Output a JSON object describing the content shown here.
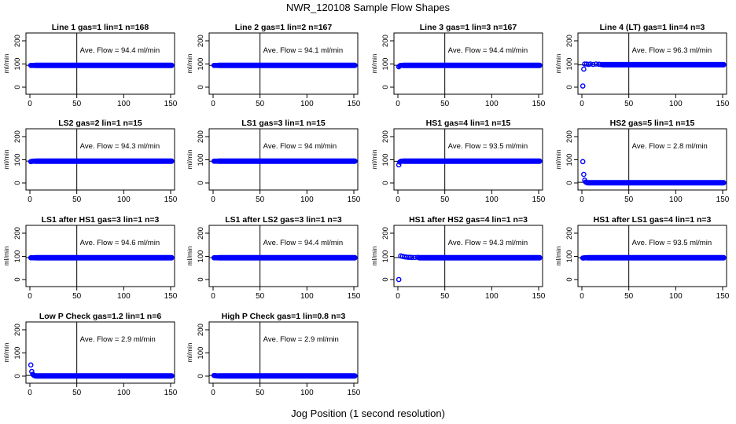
{
  "figure": {
    "title": "NWR_120108  Sample Flow Shapes",
    "xlabel": "Jog Position (1 second resolution)",
    "colors": {
      "points": "#0000ff",
      "axes": "#000000"
    }
  },
  "chart_data": [
    {
      "type": "scatter",
      "title": "Line 1 gas=1 lin=1 n=168",
      "ylabel": "ml/min",
      "annotation": "Ave. Flow = 94.4  ml/min",
      "xlim": [
        0,
        150
      ],
      "ylim": [
        0,
        200
      ],
      "xticks": [
        0,
        50,
        100,
        150
      ],
      "yticks": [
        0,
        100,
        200
      ],
      "vline": 50,
      "hline": 94.4,
      "points": [
        [
          1,
          94
        ],
        [
          2,
          94
        ],
        [
          3,
          94
        ],
        [
          4,
          94
        ],
        [
          5,
          94
        ]
      ],
      "plateau": {
        "x_from": 6,
        "x_to": 151,
        "y": 94
      }
    },
    {
      "type": "scatter",
      "title": "Line 2 gas=1 lin=2 n=167",
      "ylabel": "ml/min",
      "annotation": "Ave. Flow = 94.1  ml/min",
      "xlim": [
        0,
        150
      ],
      "ylim": [
        0,
        200
      ],
      "xticks": [
        0,
        50,
        100,
        150
      ],
      "yticks": [
        0,
        100,
        200
      ],
      "vline": 50,
      "hline": 94.1,
      "points": [
        [
          1,
          94
        ],
        [
          2,
          94
        ],
        [
          3,
          94
        ],
        [
          4,
          94
        ],
        [
          5,
          94
        ]
      ],
      "plateau": {
        "x_from": 6,
        "x_to": 151,
        "y": 94
      }
    },
    {
      "type": "scatter",
      "title": "Line 3 gas=1 lin=3 n=167",
      "ylabel": "ml/min",
      "annotation": "Ave. Flow = 94.4  ml/min",
      "xlim": [
        0,
        150
      ],
      "ylim": [
        0,
        200
      ],
      "xticks": [
        0,
        50,
        100,
        150
      ],
      "yticks": [
        0,
        100,
        200
      ],
      "vline": 50,
      "hline": 94.4,
      "points": [
        [
          1,
          88
        ],
        [
          2,
          92
        ],
        [
          3,
          94
        ],
        [
          4,
          94
        ],
        [
          5,
          94
        ]
      ],
      "plateau": {
        "x_from": 6,
        "x_to": 151,
        "y": 94
      }
    },
    {
      "type": "scatter",
      "title": "Line 4 (LT) gas=1 lin=4 n=3",
      "ylabel": "ml/min",
      "annotation": "Ave. Flow = 96.3  ml/min",
      "xlim": [
        0,
        150
      ],
      "ylim": [
        0,
        200
      ],
      "xticks": [
        0,
        50,
        100,
        150
      ],
      "yticks": [
        0,
        100,
        200
      ],
      "vline": 50,
      "hline": 96.3,
      "points": [
        [
          1,
          5
        ],
        [
          2,
          78
        ],
        [
          3,
          100
        ],
        [
          5,
          100
        ],
        [
          7,
          98
        ],
        [
          9,
          100
        ],
        [
          12,
          98
        ],
        [
          15,
          100
        ],
        [
          18,
          99
        ],
        [
          20,
          98
        ]
      ],
      "plateau": {
        "x_from": 22,
        "x_to": 151,
        "y": 97
      }
    },
    {
      "type": "scatter",
      "title": "LS2 gas=2 lin=1 n=15",
      "ylabel": "ml/min",
      "annotation": "Ave. Flow = 94.3  ml/min",
      "xlim": [
        0,
        150
      ],
      "ylim": [
        0,
        200
      ],
      "xticks": [
        0,
        50,
        100,
        150
      ],
      "yticks": [
        0,
        100,
        200
      ],
      "vline": 50,
      "hline": 94.3,
      "points": [
        [
          1,
          92
        ],
        [
          2,
          93
        ],
        [
          3,
          94
        ],
        [
          4,
          94
        ],
        [
          5,
          94
        ]
      ],
      "plateau": {
        "x_from": 6,
        "x_to": 151,
        "y": 94
      }
    },
    {
      "type": "scatter",
      "title": "LS1 gas=3 lin=1 n=15",
      "ylabel": "ml/min",
      "annotation": "Ave. Flow = 94  ml/min",
      "xlim": [
        0,
        150
      ],
      "ylim": [
        0,
        200
      ],
      "xticks": [
        0,
        50,
        100,
        150
      ],
      "yticks": [
        0,
        100,
        200
      ],
      "vline": 50,
      "hline": 94,
      "points": [
        [
          1,
          94
        ],
        [
          2,
          94
        ],
        [
          3,
          94
        ],
        [
          4,
          94
        ],
        [
          5,
          94
        ]
      ],
      "plateau": {
        "x_from": 6,
        "x_to": 151,
        "y": 94
      }
    },
    {
      "type": "scatter",
      "title": "HS1 gas=4 lin=1 n=15",
      "ylabel": "ml/min",
      "annotation": "Ave. Flow = 93.5  ml/min",
      "xlim": [
        0,
        150
      ],
      "ylim": [
        0,
        200
      ],
      "xticks": [
        0,
        50,
        100,
        150
      ],
      "yticks": [
        0,
        100,
        200
      ],
      "vline": 50,
      "hline": 93.5,
      "points": [
        [
          1,
          78
        ],
        [
          2,
          90
        ],
        [
          3,
          93
        ],
        [
          4,
          94
        ],
        [
          5,
          94
        ]
      ],
      "plateau": {
        "x_from": 6,
        "x_to": 151,
        "y": 94
      }
    },
    {
      "type": "scatter",
      "title": "HS2 gas=5 lin=1 n=15",
      "ylabel": "ml/min",
      "annotation": "Ave. Flow = 2.8  ml/min",
      "xlim": [
        0,
        150
      ],
      "ylim": [
        0,
        200
      ],
      "xticks": [
        0,
        50,
        100,
        150
      ],
      "yticks": [
        0,
        100,
        200
      ],
      "vline": 50,
      "hline": 2.8,
      "points": [
        [
          1,
          92
        ],
        [
          2,
          37
        ],
        [
          3,
          12
        ],
        [
          4,
          4
        ],
        [
          5,
          2
        ]
      ],
      "plateau": {
        "x_from": 6,
        "x_to": 151,
        "y": 1
      }
    },
    {
      "type": "scatter",
      "title": "LS1 after HS1 gas=3 lin=1 n=3",
      "ylabel": "ml/min",
      "annotation": "Ave. Flow = 94.6  ml/min",
      "xlim": [
        0,
        150
      ],
      "ylim": [
        0,
        200
      ],
      "xticks": [
        0,
        50,
        100,
        150
      ],
      "yticks": [
        0,
        100,
        200
      ],
      "vline": 50,
      "hline": 94.6,
      "points": [
        [
          1,
          94
        ],
        [
          2,
          94
        ],
        [
          3,
          94
        ],
        [
          4,
          94
        ],
        [
          5,
          94
        ]
      ],
      "plateau": {
        "x_from": 6,
        "x_to": 151,
        "y": 94
      }
    },
    {
      "type": "scatter",
      "title": "LS1 after LS2 gas=3 lin=1 n=3",
      "ylabel": "ml/min",
      "annotation": "Ave. Flow = 94.4  ml/min",
      "xlim": [
        0,
        150
      ],
      "ylim": [
        0,
        200
      ],
      "xticks": [
        0,
        50,
        100,
        150
      ],
      "yticks": [
        0,
        100,
        200
      ],
      "vline": 50,
      "hline": 94.4,
      "points": [
        [
          1,
          94
        ],
        [
          2,
          94
        ],
        [
          3,
          94
        ],
        [
          4,
          94
        ],
        [
          5,
          94
        ]
      ],
      "plateau": {
        "x_from": 6,
        "x_to": 151,
        "y": 94
      }
    },
    {
      "type": "scatter",
      "title": "HS1 after HS2 gas=4 lin=1 n=3",
      "ylabel": "ml/min",
      "annotation": "Ave. Flow = 94.3  ml/min",
      "xlim": [
        0,
        150
      ],
      "ylim": [
        0,
        200
      ],
      "xticks": [
        0,
        50,
        100,
        150
      ],
      "yticks": [
        0,
        100,
        200
      ],
      "vline": 50,
      "hline": 94.3,
      "points": [
        [
          1,
          0
        ],
        [
          3,
          102
        ],
        [
          5,
          100
        ],
        [
          7,
          98
        ],
        [
          9,
          97
        ],
        [
          11,
          96
        ],
        [
          13,
          96
        ],
        [
          15,
          95
        ],
        [
          18,
          95
        ],
        [
          21,
          96
        ]
      ],
      "plateau": {
        "x_from": 23,
        "x_to": 151,
        "y": 94
      }
    },
    {
      "type": "scatter",
      "title": "HS1 after LS1 gas=4 lin=1 n=3",
      "ylabel": "ml/min",
      "annotation": "Ave. Flow = 93.5  ml/min",
      "xlim": [
        0,
        150
      ],
      "ylim": [
        0,
        200
      ],
      "xticks": [
        0,
        50,
        100,
        150
      ],
      "yticks": [
        0,
        100,
        200
      ],
      "vline": 50,
      "hline": 93.5,
      "points": [
        [
          1,
          93
        ],
        [
          2,
          93
        ],
        [
          3,
          94
        ],
        [
          4,
          94
        ],
        [
          5,
          94
        ]
      ],
      "plateau": {
        "x_from": 6,
        "x_to": 151,
        "y": 94
      }
    },
    {
      "type": "scatter",
      "title": "Low P Check gas=1.2 lin=1 n=6",
      "ylabel": "ml/min",
      "annotation": "Ave. Flow = 2.9  ml/min",
      "xlim": [
        0,
        150
      ],
      "ylim": [
        0,
        200
      ],
      "xticks": [
        0,
        50,
        100,
        150
      ],
      "yticks": [
        0,
        100,
        200
      ],
      "vline": 50,
      "hline": 2.9,
      "points": [
        [
          1,
          48
        ],
        [
          2,
          20
        ],
        [
          3,
          8
        ],
        [
          4,
          4
        ],
        [
          5,
          2
        ]
      ],
      "plateau": {
        "x_from": 6,
        "x_to": 151,
        "y": 1
      }
    },
    {
      "type": "scatter",
      "title": "High P Check gas=1 lin=0.8 n=3",
      "ylabel": "ml/min",
      "annotation": "Ave. Flow = 2.9  ml/min",
      "xlim": [
        0,
        150
      ],
      "ylim": [
        0,
        200
      ],
      "xticks": [
        0,
        50,
        100,
        150
      ],
      "yticks": [
        0,
        100,
        200
      ],
      "vline": 50,
      "hline": 2.9,
      "points": [
        [
          1,
          3
        ],
        [
          2,
          2
        ],
        [
          3,
          2
        ],
        [
          4,
          1
        ],
        [
          5,
          1
        ]
      ],
      "plateau": {
        "x_from": 6,
        "x_to": 151,
        "y": 1
      }
    }
  ]
}
